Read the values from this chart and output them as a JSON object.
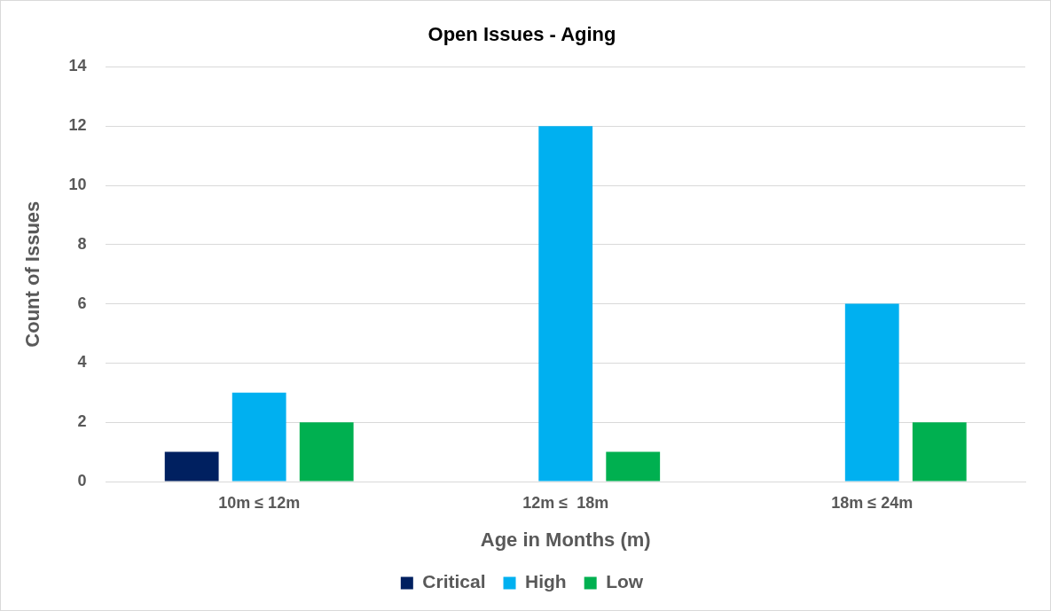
{
  "chart_data": {
    "type": "bar",
    "title": "Open Issues - Aging",
    "xlabel": "Age in Months (m)",
    "ylabel": "Count of Issues",
    "categories": [
      "10m ≤ 12m",
      "12m ≤  18m",
      "18m ≤ 24m"
    ],
    "series": [
      {
        "name": "Critical",
        "color": "#002060",
        "values": [
          1,
          null,
          null
        ]
      },
      {
        "name": "High",
        "color": "#00b0f0",
        "values": [
          3,
          12,
          6
        ]
      },
      {
        "name": "Low",
        "color": "#00b050",
        "values": [
          2,
          1,
          2
        ]
      }
    ],
    "ylim": [
      0,
      14
    ],
    "yticks": [
      0,
      2,
      4,
      6,
      8,
      10,
      12,
      14
    ],
    "grid": "y",
    "legend": "bottom"
  }
}
